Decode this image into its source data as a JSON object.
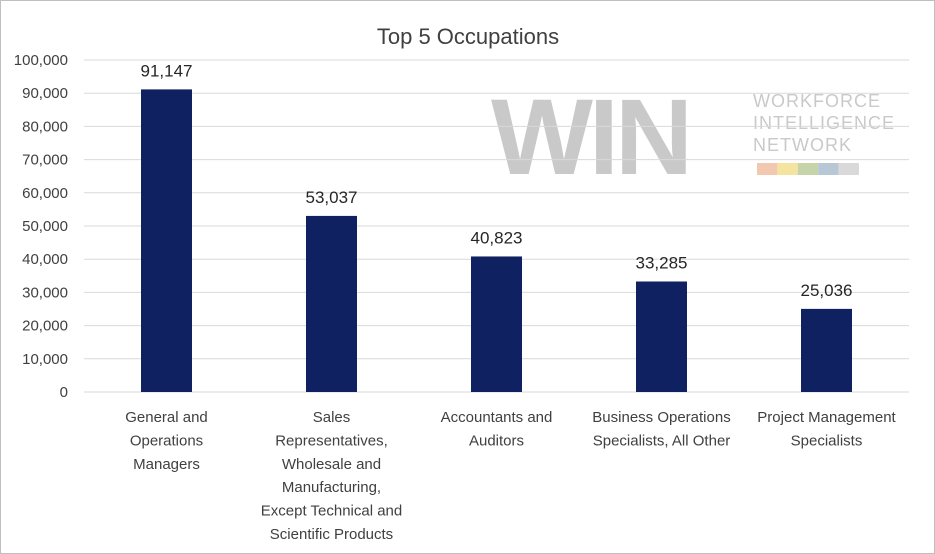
{
  "chart_data": {
    "type": "bar",
    "title": "Top 5 Occupations",
    "xlabel": "",
    "ylabel": "",
    "ylim": [
      0,
      100000
    ],
    "ytick_values": [
      0,
      10000,
      20000,
      30000,
      40000,
      50000,
      60000,
      70000,
      80000,
      90000,
      100000
    ],
    "ytick_labels": [
      "0",
      "10,000",
      "20,000",
      "30,000",
      "40,000",
      "50,000",
      "60,000",
      "70,000",
      "80,000",
      "90,000",
      "100,000"
    ],
    "categories": [
      [
        "General and",
        "Operations",
        "Managers"
      ],
      [
        "Sales",
        "Representatives,",
        "Wholesale and",
        "Manufacturing,",
        "Except Technical and",
        "Scientific Products"
      ],
      [
        "Accountants and",
        "Auditors"
      ],
      [
        "Business Operations",
        "Specialists, All Other"
      ],
      [
        "Project Management",
        "Specialists"
      ]
    ],
    "values": [
      91147,
      53037,
      40823,
      33285,
      25036
    ],
    "data_labels": [
      "91,147",
      "53,037",
      "40,823",
      "33,285",
      "25,036"
    ],
    "grid": true,
    "legend": "none",
    "bar_color": "#0f2160"
  },
  "watermark": {
    "logo_text": "WIN",
    "lines": [
      "WORKFORCE",
      "INTELLIGENCE",
      "NETWORK"
    ],
    "colors": [
      "#f2c8b0",
      "#f5e3a0",
      "#c7d3a8",
      "#b8c7d6",
      "#d9d9d9"
    ]
  }
}
